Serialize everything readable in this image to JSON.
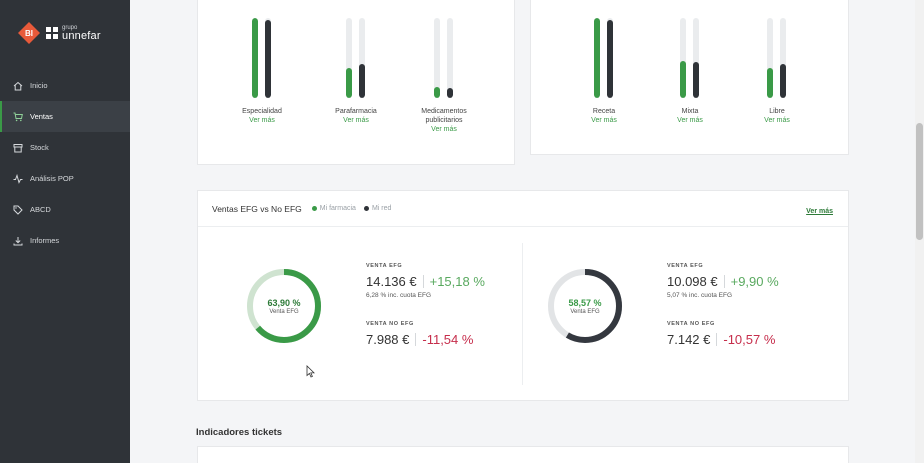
{
  "brand": {
    "badge": "BI",
    "small": "grupo",
    "big": "unnefar"
  },
  "nav": [
    {
      "label": "Inicio",
      "icon": "home-icon"
    },
    {
      "label": "Ventas",
      "icon": "cart-icon",
      "active": true
    },
    {
      "label": "Stock",
      "icon": "box-icon"
    },
    {
      "label": "Análisis POP",
      "icon": "pulse-icon"
    },
    {
      "label": "ABCD",
      "icon": "tag-icon"
    },
    {
      "label": "Informes",
      "icon": "download-icon"
    }
  ],
  "bars_left": [
    {
      "label": "Especialidad",
      "link": "Ver más",
      "green": 1.0,
      "dark": 0.97
    },
    {
      "label": "Parafarmacia",
      "link": "Ver más",
      "green": 0.38,
      "dark": 0.42
    },
    {
      "label": "Medicamentos publicitarios",
      "link": "Ver más",
      "green": 0.14,
      "dark": 0.13
    }
  ],
  "bars_right": [
    {
      "label": "Receta",
      "link": "Ver más",
      "green": 1.0,
      "dark": 0.98
    },
    {
      "label": "Mixta",
      "link": "Ver más",
      "green": 0.46,
      "dark": 0.45
    },
    {
      "label": "Libre",
      "link": "Ver más",
      "green": 0.38,
      "dark": 0.43
    }
  ],
  "efg": {
    "title": "Ventas EFG vs No EFG",
    "legend": [
      {
        "label": "Mi farmacia",
        "color": "#3a9a47"
      },
      {
        "label": "Mi red",
        "color": "#2f3338"
      }
    ],
    "link": "Ver más",
    "panels": [
      {
        "donut_pct": "63,90 %",
        "donut_fraction": 0.639,
        "donut_label": "Venta EFG",
        "ring_color": "#3a9a47",
        "track_color": "#cfe3d0",
        "pct_color": "#2d7a38",
        "efg_label": "VENTA EFG",
        "efg_value": "14.136 €",
        "efg_change": "+15,18 %",
        "efg_note": "6,28 % inc. cuota EFG",
        "noefg_label": "VENTA NO EFG",
        "noefg_value": "7.988 €",
        "noefg_change": "-11,54 %"
      },
      {
        "donut_pct": "58,57 %",
        "donut_fraction": 0.5857,
        "donut_label": "Venta EFG",
        "ring_color": "#34383f",
        "track_color": "#e2e4e6",
        "pct_color": "#3a9a47",
        "efg_label": "VENTA EFG",
        "efg_value": "10.098 €",
        "efg_change": "+9,90 %",
        "efg_note": "5,07 % inc. cuota EFG",
        "noefg_label": "VENTA NO EFG",
        "noefg_value": "7.142 €",
        "noefg_change": "-10,57 %"
      }
    ]
  },
  "section_title": "Indicadores tickets"
}
